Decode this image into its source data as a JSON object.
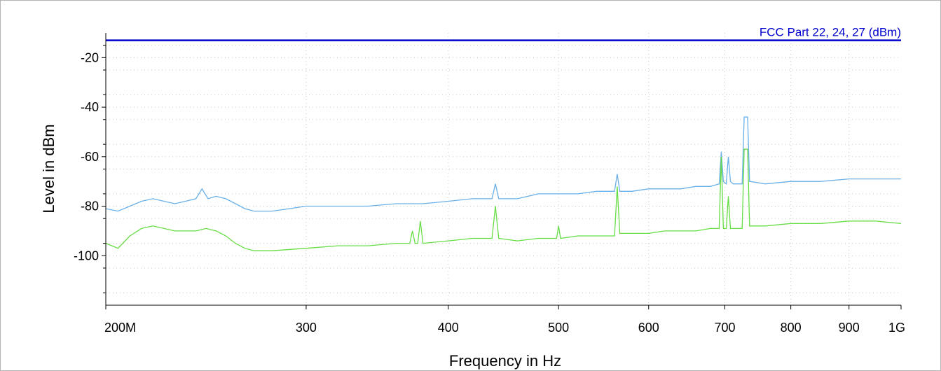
{
  "chart_data": {
    "type": "line",
    "xlabel": "Frequency in Hz",
    "ylabel": "Level in dBm",
    "x_scale": "log",
    "xlim": [
      200000000,
      1000000000
    ],
    "ylim": [
      -120,
      -10
    ],
    "grid": true,
    "x_ticks": [
      {
        "value": 200000000,
        "label": "200M"
      },
      {
        "value": 300000000,
        "label": "300"
      },
      {
        "value": 400000000,
        "label": "400"
      },
      {
        "value": 500000000,
        "label": "500"
      },
      {
        "value": 600000000,
        "label": "600"
      },
      {
        "value": 700000000,
        "label": "700"
      },
      {
        "value": 800000000,
        "label": "800"
      },
      {
        "value": 900000000,
        "label": "900"
      },
      {
        "value": 1000000000,
        "label": "1G"
      }
    ],
    "y_ticks": [
      {
        "value": -20,
        "label": "-20"
      },
      {
        "value": -40,
        "label": "-40"
      },
      {
        "value": -60,
        "label": "-60"
      },
      {
        "value": -80,
        "label": "-80"
      },
      {
        "value": -100,
        "label": "-100"
      }
    ],
    "y_minor_ticks": [
      -15,
      -25,
      -35,
      -45,
      -55,
      -65,
      -75,
      -85,
      -95,
      -105,
      -115
    ],
    "limit_line": {
      "name": "FCC Part 22, 24, 27 (dBm)",
      "value": -13,
      "color": "#0000cc"
    },
    "series": [
      {
        "color": "#6ab0e8",
        "points": [
          [
            200000000.0,
            -81
          ],
          [
            205000000.0,
            -82
          ],
          [
            210000000.0,
            -80
          ],
          [
            215000000.0,
            -78
          ],
          [
            220000000.0,
            -77
          ],
          [
            225000000.0,
            -78
          ],
          [
            230000000.0,
            -79
          ],
          [
            235000000.0,
            -78
          ],
          [
            240000000.0,
            -77
          ],
          [
            243000000.0,
            -73
          ],
          [
            246000000.0,
            -77
          ],
          [
            250000000.0,
            -76
          ],
          [
            255000000.0,
            -77
          ],
          [
            260000000.0,
            -79
          ],
          [
            265000000.0,
            -81
          ],
          [
            270000000.0,
            -82
          ],
          [
            280000000.0,
            -82
          ],
          [
            290000000.0,
            -81
          ],
          [
            300000000.0,
            -80
          ],
          [
            320000000.0,
            -80
          ],
          [
            340000000.0,
            -80
          ],
          [
            360000000.0,
            -79
          ],
          [
            380000000.0,
            -79
          ],
          [
            400000000.0,
            -78
          ],
          [
            420000000.0,
            -77
          ],
          [
            437000000.0,
            -77
          ],
          [
            440000000.0,
            -71
          ],
          [
            443000000.0,
            -77
          ],
          [
            460000000.0,
            -77
          ],
          [
            480000000.0,
            -75
          ],
          [
            500000000.0,
            -75
          ],
          [
            520000000.0,
            -75
          ],
          [
            540000000.0,
            -74
          ],
          [
            560000000.0,
            -74
          ],
          [
            563000000.0,
            -67
          ],
          [
            566000000.0,
            -74
          ],
          [
            580000000.0,
            -74
          ],
          [
            600000000.0,
            -73
          ],
          [
            620000000.0,
            -73
          ],
          [
            640000000.0,
            -73
          ],
          [
            660000000.0,
            -72
          ],
          [
            680000000.0,
            -72
          ],
          [
            692000000.0,
            -71
          ],
          [
            695000000.0,
            -58
          ],
          [
            698000000.0,
            -70
          ],
          [
            702000000.0,
            -71
          ],
          [
            705000000.0,
            -60
          ],
          [
            708000000.0,
            -70
          ],
          [
            712000000.0,
            -71
          ],
          [
            725000000.0,
            -71
          ],
          [
            728000000.0,
            -44
          ],
          [
            733000000.0,
            -44
          ],
          [
            736000000.0,
            -70
          ],
          [
            760000000.0,
            -71
          ],
          [
            800000000.0,
            -70
          ],
          [
            850000000.0,
            -70
          ],
          [
            900000000.0,
            -69
          ],
          [
            950000000.0,
            -69
          ],
          [
            1000000000.0,
            -69
          ]
        ]
      },
      {
        "color": "#66dd44",
        "points": [
          [
            200000000.0,
            -95
          ],
          [
            205000000.0,
            -97
          ],
          [
            210000000.0,
            -92
          ],
          [
            215000000.0,
            -89
          ],
          [
            220000000.0,
            -88
          ],
          [
            225000000.0,
            -89
          ],
          [
            230000000.0,
            -90
          ],
          [
            240000000.0,
            -90
          ],
          [
            245000000.0,
            -89
          ],
          [
            250000000.0,
            -90
          ],
          [
            255000000.0,
            -92
          ],
          [
            260000000.0,
            -95
          ],
          [
            265000000.0,
            -97
          ],
          [
            270000000.0,
            -98
          ],
          [
            280000000.0,
            -98
          ],
          [
            300000000.0,
            -97
          ],
          [
            320000000.0,
            -96
          ],
          [
            340000000.0,
            -96
          ],
          [
            360000000.0,
            -95
          ],
          [
            370000000.0,
            -95
          ],
          [
            372000000.0,
            -90
          ],
          [
            374000000.0,
            -95
          ],
          [
            376000000.0,
            -95
          ],
          [
            378000000.0,
            -86
          ],
          [
            380000000.0,
            -95
          ],
          [
            400000000.0,
            -94
          ],
          [
            420000000.0,
            -93
          ],
          [
            437000000.0,
            -93
          ],
          [
            440000000.0,
            -80
          ],
          [
            443000000.0,
            -93
          ],
          [
            460000000.0,
            -94
          ],
          [
            480000000.0,
            -93
          ],
          [
            498000000.0,
            -93
          ],
          [
            500000000.0,
            -88
          ],
          [
            502000000.0,
            -93
          ],
          [
            520000000.0,
            -92
          ],
          [
            540000000.0,
            -92
          ],
          [
            560000000.0,
            -92
          ],
          [
            563000000.0,
            -72
          ],
          [
            566000000.0,
            -91
          ],
          [
            580000000.0,
            -91
          ],
          [
            600000000.0,
            -91
          ],
          [
            620000000.0,
            -90
          ],
          [
            640000000.0,
            -90
          ],
          [
            660000000.0,
            -90
          ],
          [
            680000000.0,
            -89
          ],
          [
            692000000.0,
            -89
          ],
          [
            695000000.0,
            -60
          ],
          [
            698000000.0,
            -89
          ],
          [
            702000000.0,
            -89
          ],
          [
            705000000.0,
            -76
          ],
          [
            708000000.0,
            -89
          ],
          [
            712000000.0,
            -89
          ],
          [
            725000000.0,
            -89
          ],
          [
            728000000.0,
            -57
          ],
          [
            733000000.0,
            -57
          ],
          [
            736000000.0,
            -88
          ],
          [
            760000000.0,
            -88
          ],
          [
            800000000.0,
            -87
          ],
          [
            850000000.0,
            -87
          ],
          [
            900000000.0,
            -86
          ],
          [
            950000000.0,
            -86
          ],
          [
            1000000000.0,
            -87
          ]
        ]
      }
    ]
  }
}
